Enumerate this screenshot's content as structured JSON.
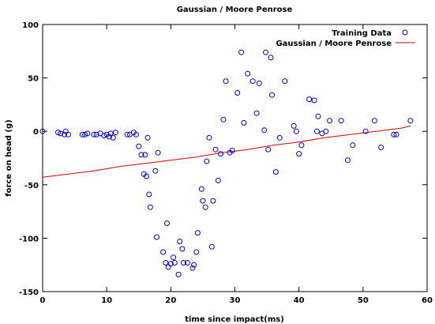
{
  "chart_data": {
    "type": "scatter",
    "title": "Gaussian / Moore Penrose",
    "xlabel": "time since impact(ms)",
    "ylabel": "force on head (g)",
    "xlim": [
      0,
      60
    ],
    "ylim": [
      -150,
      100
    ],
    "xticks": [
      "0",
      "10",
      "20",
      "30",
      "40",
      "50",
      "60"
    ],
    "yticks": [
      "-150",
      "-100",
      "-50",
      "0",
      "50",
      "100"
    ],
    "grid": false,
    "legend_position": "top-right",
    "colors": {
      "points": "#0000c0",
      "line": "#d00000"
    },
    "series": [
      {
        "name": "Training Data",
        "kind": "scatter",
        "points": [
          [
            0.0,
            0
          ],
          [
            2.4,
            -1
          ],
          [
            2.8,
            -2
          ],
          [
            3.4,
            -3
          ],
          [
            3.6,
            0
          ],
          [
            4.0,
            -3
          ],
          [
            6.2,
            -3
          ],
          [
            6.6,
            -3
          ],
          [
            7.0,
            -2
          ],
          [
            8.0,
            -3
          ],
          [
            8.4,
            -3
          ],
          [
            9.0,
            -2
          ],
          [
            9.6,
            -4
          ],
          [
            10.0,
            -3
          ],
          [
            10.4,
            -5
          ],
          [
            10.6,
            -2
          ],
          [
            11.0,
            -6
          ],
          [
            11.4,
            -1
          ],
          [
            13.2,
            -3
          ],
          [
            13.6,
            -3
          ],
          [
            14.2,
            -1
          ],
          [
            14.6,
            -3
          ],
          [
            15.0,
            -14
          ],
          [
            15.4,
            -22
          ],
          [
            15.8,
            -40
          ],
          [
            16.0,
            -22
          ],
          [
            16.2,
            -42
          ],
          [
            16.4,
            -6
          ],
          [
            16.6,
            -59
          ],
          [
            16.8,
            -71
          ],
          [
            17.6,
            -37
          ],
          [
            17.8,
            -99
          ],
          [
            18.0,
            -20
          ],
          [
            18.8,
            -113
          ],
          [
            19.2,
            -123
          ],
          [
            19.4,
            -86
          ],
          [
            19.6,
            -127
          ],
          [
            20.0,
            -124
          ],
          [
            20.4,
            -118
          ],
          [
            20.6,
            -123
          ],
          [
            21.2,
            -134
          ],
          [
            21.4,
            -103
          ],
          [
            21.8,
            -110
          ],
          [
            22.0,
            -123
          ],
          [
            22.6,
            -123
          ],
          [
            23.4,
            -128
          ],
          [
            23.6,
            -125
          ],
          [
            24.0,
            -113
          ],
          [
            24.2,
            -95
          ],
          [
            24.8,
            -54
          ],
          [
            25.0,
            -65
          ],
          [
            25.4,
            -71
          ],
          [
            25.6,
            -28
          ],
          [
            26.0,
            -6
          ],
          [
            26.4,
            -108
          ],
          [
            26.6,
            -65
          ],
          [
            27.0,
            -17
          ],
          [
            27.4,
            -46
          ],
          [
            27.8,
            -21
          ],
          [
            28.2,
            11
          ],
          [
            28.6,
            47
          ],
          [
            29.2,
            -20
          ],
          [
            29.6,
            -18
          ],
          [
            30.4,
            36
          ],
          [
            31.0,
            74
          ],
          [
            31.4,
            8
          ],
          [
            32.0,
            54
          ],
          [
            32.8,
            47
          ],
          [
            33.4,
            17
          ],
          [
            33.8,
            45
          ],
          [
            34.6,
            1
          ],
          [
            34.8,
            74
          ],
          [
            35.2,
            -17
          ],
          [
            35.6,
            69
          ],
          [
            35.8,
            34
          ],
          [
            36.4,
            -38
          ],
          [
            37.0,
            -6
          ],
          [
            37.8,
            47
          ],
          [
            39.2,
            5
          ],
          [
            39.6,
            0
          ],
          [
            40.0,
            -21
          ],
          [
            40.4,
            -13
          ],
          [
            41.6,
            30
          ],
          [
            42.4,
            29
          ],
          [
            42.8,
            0
          ],
          [
            43.0,
            14
          ],
          [
            43.6,
            -2
          ],
          [
            44.2,
            0
          ],
          [
            44.8,
            10
          ],
          [
            46.6,
            10
          ],
          [
            47.6,
            -27
          ],
          [
            48.4,
            -13
          ],
          [
            50.4,
            0
          ],
          [
            51.8,
            10
          ],
          [
            52.8,
            -15
          ],
          [
            54.8,
            -3
          ],
          [
            55.2,
            -3
          ],
          [
            57.4,
            10
          ]
        ]
      },
      {
        "name": "Gaussian / Moore Penrose",
        "kind": "line",
        "points": [
          [
            0.0,
            -43
          ],
          [
            4.0,
            -40
          ],
          [
            8.0,
            -37
          ],
          [
            12.0,
            -33
          ],
          [
            16.0,
            -30
          ],
          [
            20.0,
            -27
          ],
          [
            24.0,
            -24
          ],
          [
            28.0,
            -20
          ],
          [
            32.0,
            -17
          ],
          [
            36.0,
            -13
          ],
          [
            40.0,
            -10
          ],
          [
            44.0,
            -6
          ],
          [
            48.0,
            -3
          ],
          [
            52.0,
            0
          ],
          [
            56.0,
            3
          ],
          [
            57.4,
            5
          ]
        ]
      }
    ]
  }
}
